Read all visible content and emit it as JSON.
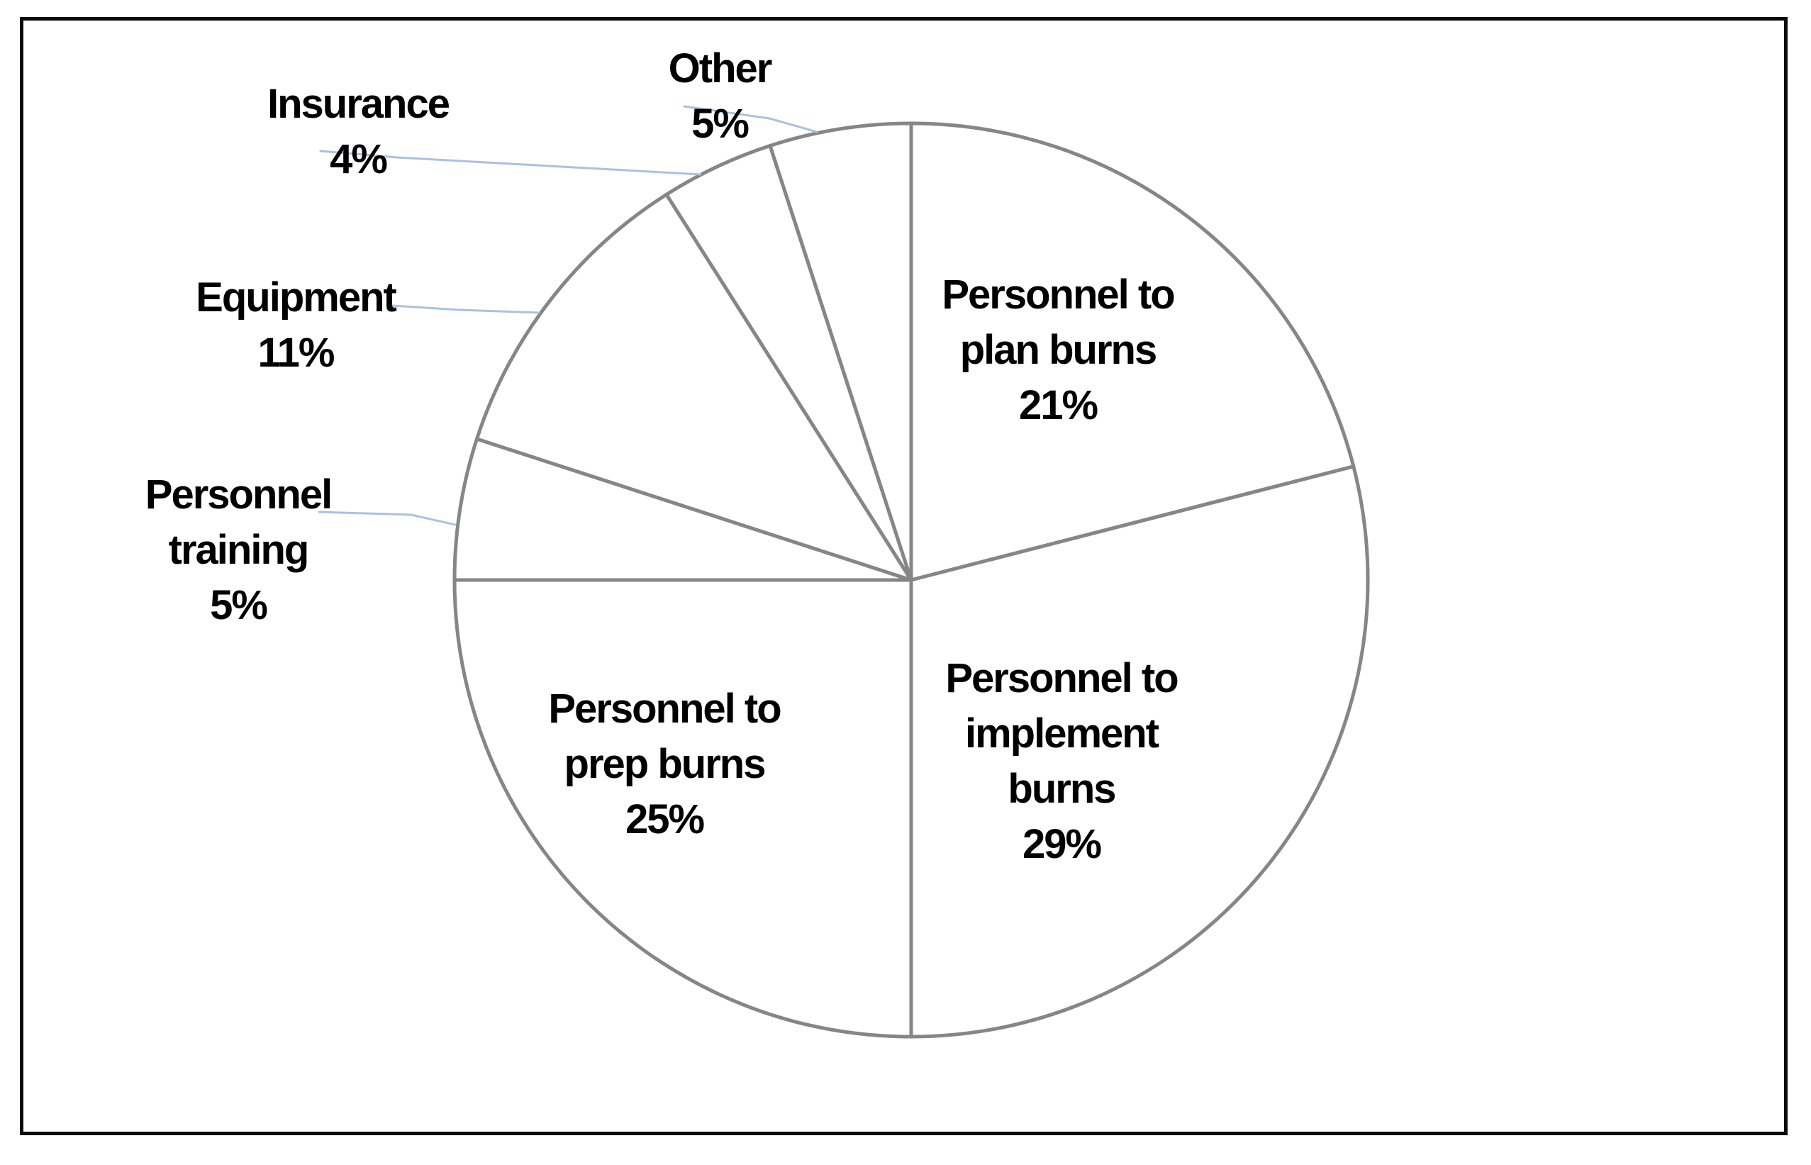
{
  "chart_data": {
    "type": "pie",
    "title": "",
    "legend": "none",
    "direction": "clockwise",
    "start_angle_deg_from_top": 0,
    "unit": "%",
    "categories": [
      "Personnel to plan burns",
      "Personnel to implement burns",
      "Personnel to prep burns",
      "Personnel training",
      "Equipment",
      "Insurance",
      "Other"
    ],
    "values": [
      21,
      29,
      25,
      5,
      11,
      4,
      5
    ],
    "slices": [
      {
        "name": "Personnel to plan burns",
        "value": 21,
        "label_text": "Personnel to\nplan burns\n21%"
      },
      {
        "name": "Personnel to implement burns",
        "value": 29,
        "label_text": "Personnel to\nimplement\nburns\n29%"
      },
      {
        "name": "Personnel to prep burns",
        "value": 25,
        "label_text": "Personnel to\nprep burns\n25%"
      },
      {
        "name": "Personnel training",
        "value": 5,
        "label_text": "Personnel\ntraining\n5%"
      },
      {
        "name": "Equipment",
        "value": 11,
        "label_text": "Equipment\n11%"
      },
      {
        "name": "Insurance",
        "value": 4,
        "label_text": "Insurance\n4%"
      },
      {
        "name": "Other",
        "value": 5,
        "label_text": "Other\n5%"
      }
    ],
    "colors": {
      "slice_fill": "#ffffff",
      "slice_stroke": "#868686",
      "leader_line": "#a9c2e0",
      "label_text": "#000000",
      "frame_border": "#0b0b0b"
    }
  }
}
